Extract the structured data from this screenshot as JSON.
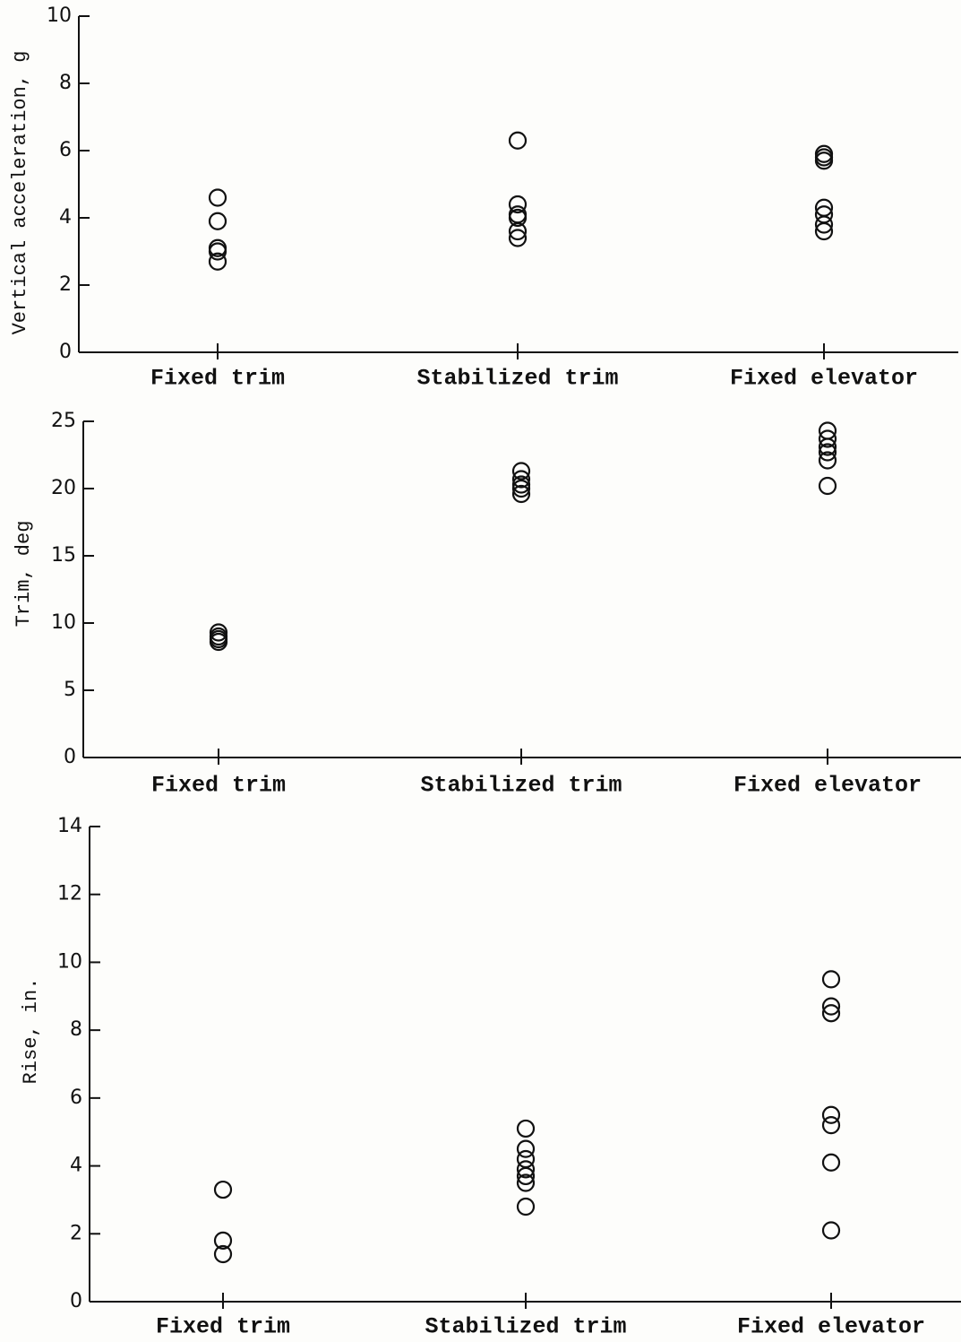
{
  "chart_data": [
    {
      "type": "scatter",
      "ylabel": "Vertical acceleration, g",
      "categories": [
        "Fixed trim",
        "Stabilized trim",
        "Fixed elevator"
      ],
      "values": [
        [
          4.6,
          3.9,
          3.1,
          3.0,
          2.7
        ],
        [
          6.3,
          4.4,
          4.1,
          4.0,
          3.6,
          3.4
        ],
        [
          5.9,
          5.8,
          5.7,
          4.3,
          4.1,
          3.8,
          3.6
        ]
      ],
      "ylim": [
        0,
        10
      ],
      "yticks": [
        0,
        2,
        4,
        6,
        8,
        10
      ]
    },
    {
      "type": "scatter",
      "ylabel": "Trim, deg",
      "categories": [
        "Fixed trim",
        "Stabilized trim",
        "Fixed elevator"
      ],
      "values": [
        [
          9.3,
          9.0,
          8.8,
          8.6
        ],
        [
          21.3,
          20.7,
          20.3,
          20.0,
          19.6
        ],
        [
          24.3,
          23.7,
          23.1,
          22.7,
          22.1,
          20.2
        ]
      ],
      "ylim": [
        0,
        25
      ],
      "yticks": [
        0,
        5,
        10,
        15,
        20,
        25
      ]
    },
    {
      "type": "scatter",
      "ylabel": "Rise, in.",
      "categories": [
        "Fixed trim",
        "Stabilized trim",
        "Fixed elevator"
      ],
      "values": [
        [
          3.3,
          1.8,
          1.4
        ],
        [
          5.1,
          4.5,
          4.2,
          3.9,
          3.7,
          3.5,
          2.8
        ],
        [
          9.5,
          8.7,
          8.5,
          5.5,
          5.2,
          4.1,
          2.1
        ]
      ],
      "ylim": [
        0,
        14
      ],
      "yticks": [
        0,
        2,
        4,
        6,
        8,
        10,
        12,
        14
      ]
    }
  ]
}
